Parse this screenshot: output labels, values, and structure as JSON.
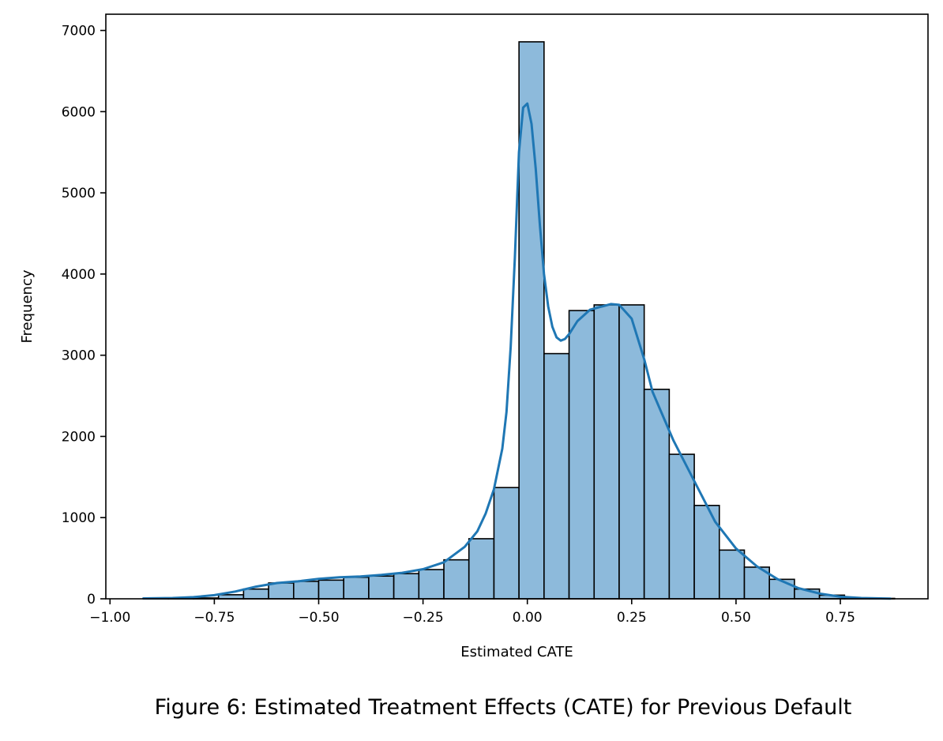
{
  "caption": "Figure 6: Estimated Treatment Effects (CATE) for Previous Default",
  "chart_data": {
    "type": "bar",
    "subtype": "histogram-with-kde",
    "title": "",
    "xlabel": "Estimated CATE",
    "ylabel": "Frequency",
    "xlim": [
      -1.01,
      0.96
    ],
    "ylim": [
      0,
      7200
    ],
    "xticks": [
      -1.0,
      -0.75,
      -0.5,
      -0.25,
      0.0,
      0.25,
      0.5,
      0.75
    ],
    "xtick_labels": [
      "−1.00",
      "−0.75",
      "−0.50",
      "−0.25",
      "0.00",
      "0.25",
      "0.50",
      "0.75"
    ],
    "yticks": [
      0,
      1000,
      2000,
      3000,
      4000,
      5000,
      6000,
      7000
    ],
    "ytick_labels": [
      "0",
      "1000",
      "2000",
      "3000",
      "4000",
      "5000",
      "6000",
      "7000"
    ],
    "grid": false,
    "legend": "none",
    "bar_color": "#8dbadb",
    "edge_color": "#000000",
    "kde_color": "#1f77b4",
    "bins": {
      "edges": [
        -0.92,
        -0.86,
        -0.8,
        -0.74,
        -0.68,
        -0.62,
        -0.56,
        -0.5,
        -0.44,
        -0.38,
        -0.32,
        -0.26,
        -0.2,
        -0.14,
        -0.08,
        -0.02,
        0.04,
        0.1,
        0.16,
        0.22,
        0.28,
        0.34,
        0.4,
        0.46,
        0.52,
        0.58,
        0.64,
        0.7,
        0.76,
        0.82,
        0.88
      ],
      "counts": [
        3,
        5,
        10,
        50,
        120,
        195,
        215,
        230,
        265,
        280,
        310,
        360,
        480,
        740,
        1370,
        6860,
        3020,
        3550,
        3620,
        3620,
        2580,
        1780,
        1150,
        600,
        390,
        240,
        120,
        45,
        10,
        5
      ]
    },
    "kde": {
      "x": [
        -0.92,
        -0.85,
        -0.8,
        -0.75,
        -0.7,
        -0.65,
        -0.6,
        -0.55,
        -0.5,
        -0.45,
        -0.4,
        -0.35,
        -0.3,
        -0.25,
        -0.2,
        -0.15,
        -0.12,
        -0.1,
        -0.08,
        -0.07,
        -0.06,
        -0.05,
        -0.04,
        -0.03,
        -0.02,
        -0.01,
        0.0,
        0.01,
        0.02,
        0.03,
        0.04,
        0.05,
        0.06,
        0.07,
        0.08,
        0.09,
        0.1,
        0.12,
        0.15,
        0.2,
        0.22,
        0.25,
        0.28,
        0.3,
        0.35,
        0.4,
        0.45,
        0.5,
        0.55,
        0.6,
        0.65,
        0.7,
        0.75,
        0.8,
        0.87
      ],
      "y": [
        5,
        10,
        20,
        45,
        90,
        150,
        195,
        215,
        245,
        265,
        275,
        295,
        320,
        365,
        450,
        640,
        830,
        1050,
        1350,
        1600,
        1850,
        2300,
        3100,
        4200,
        5500,
        6050,
        6100,
        5850,
        5300,
        4600,
        4000,
        3600,
        3350,
        3220,
        3180,
        3200,
        3260,
        3420,
        3560,
        3630,
        3620,
        3450,
        2950,
        2550,
        1950,
        1450,
        950,
        620,
        400,
        240,
        130,
        65,
        25,
        10,
        3
      ]
    }
  }
}
